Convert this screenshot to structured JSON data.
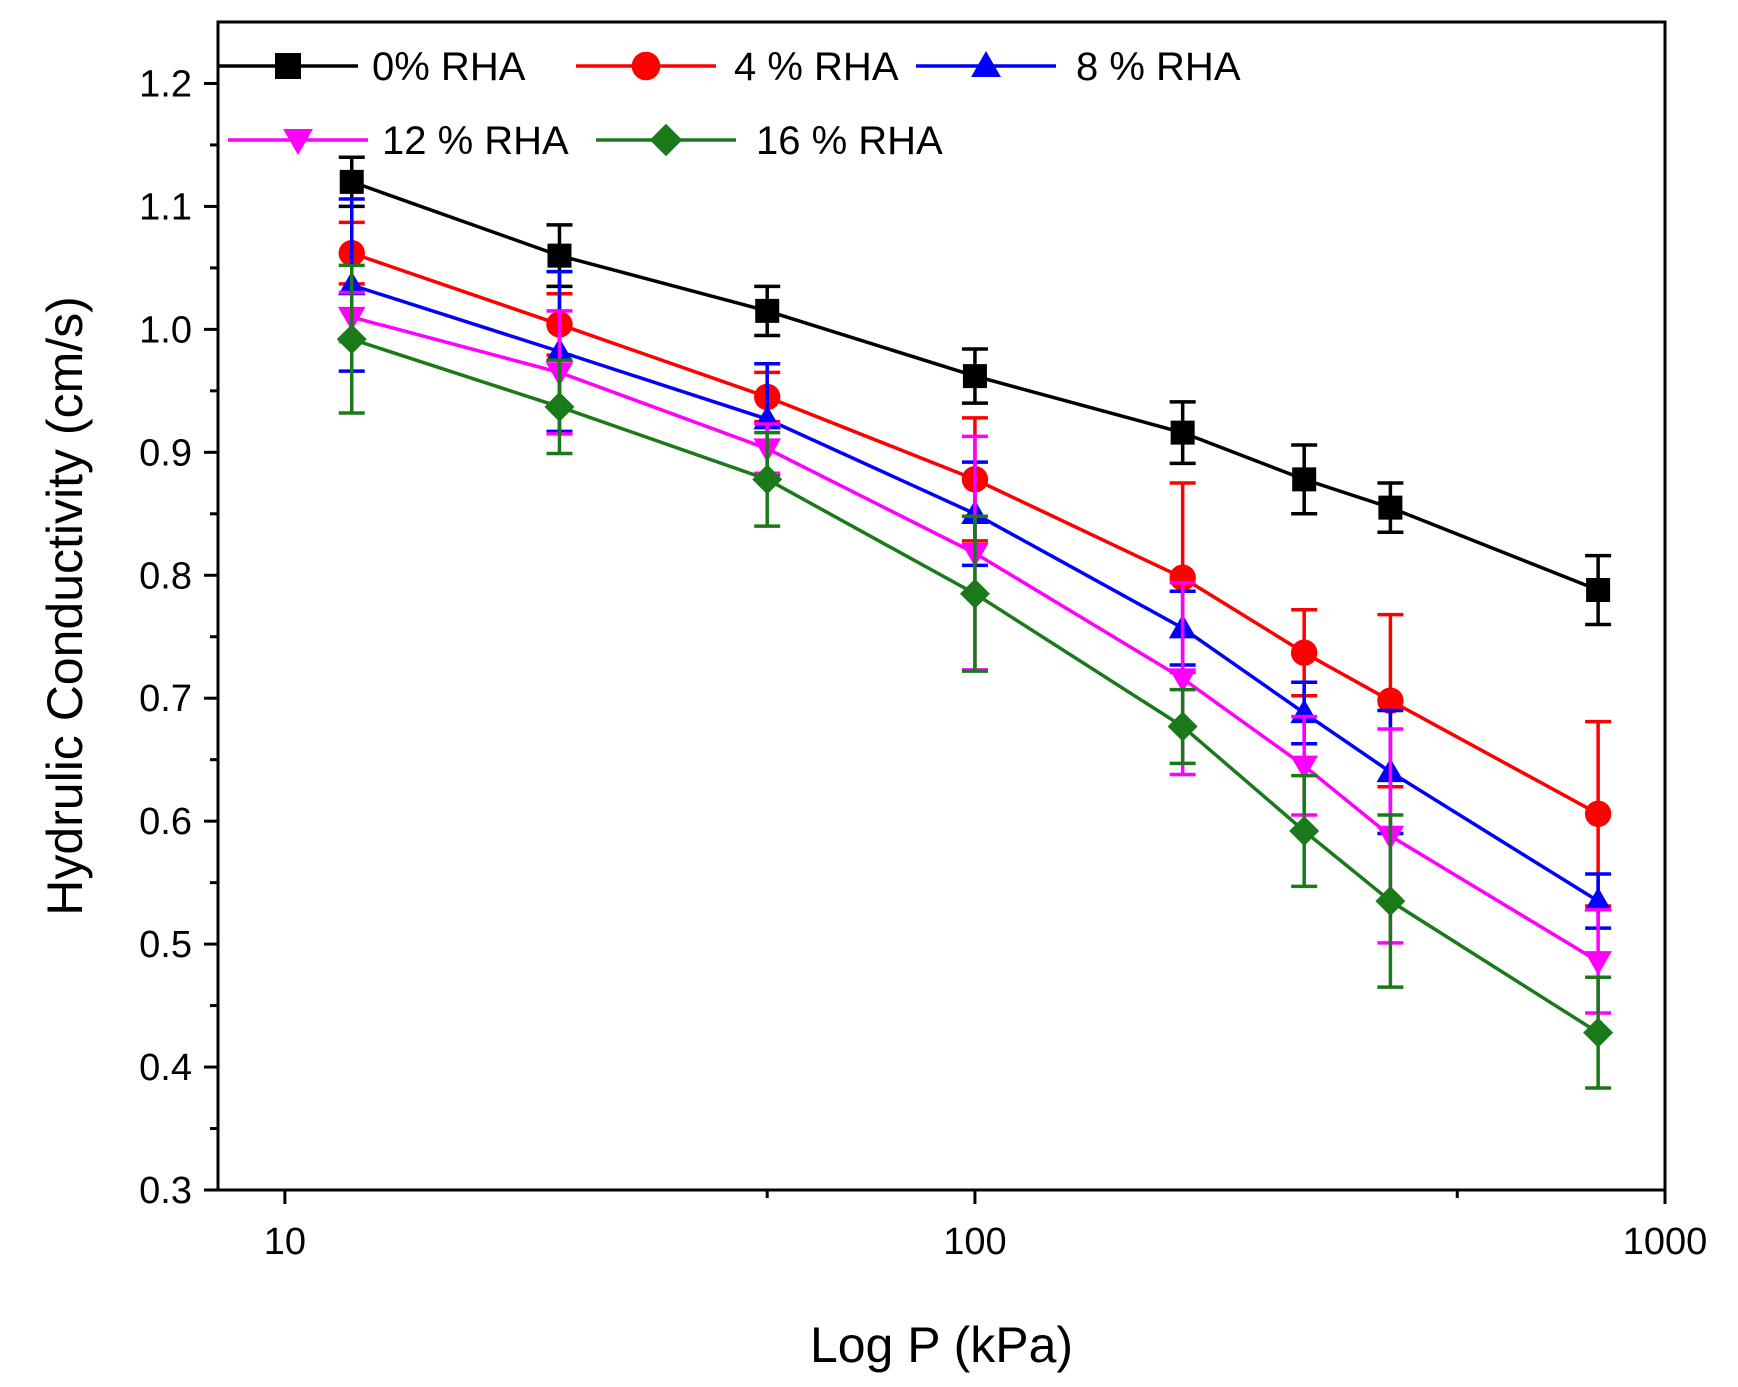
{
  "chart_data": {
    "type": "line",
    "xlabel": "Log P (kPa)",
    "ylabel": "Hydrulic Conductivity (cm/s)",
    "xscale": "log",
    "xlim": [
      8,
      1000
    ],
    "ylim": [
      0.3,
      1.25
    ],
    "x_ticks": [
      10,
      100,
      1000
    ],
    "x_tick_labels": [
      "10",
      "100",
      "1000"
    ],
    "y_ticks": [
      0.3,
      0.4,
      0.5,
      0.6,
      0.7,
      0.8,
      0.9,
      1.0,
      1.1,
      1.2
    ],
    "y_tick_labels": [
      "0.3",
      "0.4",
      "0.5",
      "0.6",
      "0.7",
      "0.8",
      "0.9",
      "1.0",
      "1.1",
      "1.2"
    ],
    "grid": false,
    "legend_position": "top-left",
    "x": [
      12.5,
      25,
      50,
      100,
      200,
      300,
      400,
      800
    ],
    "series": [
      {
        "name": "0% RHA",
        "color": "#000000",
        "marker": "square",
        "values": [
          1.12,
          1.06,
          1.015,
          0.962,
          0.916,
          0.878,
          0.855,
          0.788
        ],
        "errors": [
          0.02,
          0.025,
          0.02,
          0.022,
          0.025,
          0.028,
          0.02,
          0.028
        ]
      },
      {
        "name": "4 % RHA",
        "color": "#ff0000",
        "marker": "circle",
        "values": [
          1.062,
          1.004,
          0.945,
          0.878,
          0.798,
          0.737,
          0.698,
          0.606
        ],
        "errors": [
          0.025,
          0.025,
          0.02,
          0.05,
          0.077,
          0.035,
          0.07,
          0.075
        ]
      },
      {
        "name": "8 % RHA",
        "color": "#0000ff",
        "marker": "triangle-up",
        "values": [
          1.036,
          0.982,
          0.927,
          0.85,
          0.757,
          0.688,
          0.64,
          0.535
        ],
        "errors": [
          0.07,
          0.065,
          0.045,
          0.042,
          0.03,
          0.025,
          0.05,
          0.022
        ]
      },
      {
        "name": "12 % RHA",
        "color": "#ff00ff",
        "marker": "triangle-down",
        "values": [
          1.01,
          0.965,
          0.903,
          0.818,
          0.716,
          0.645,
          0.588,
          0.486
        ],
        "errors": [
          0.02,
          0.05,
          0.02,
          0.095,
          0.078,
          0.04,
          0.087,
          0.042
        ]
      },
      {
        "name": "16 % RHA",
        "color": "#1a7a1a",
        "marker": "diamond",
        "values": [
          0.992,
          0.937,
          0.878,
          0.785,
          0.677,
          0.592,
          0.535,
          0.428
        ],
        "errors": [
          0.06,
          0.038,
          0.038,
          0.063,
          0.03,
          0.045,
          0.07,
          0.045
        ]
      }
    ]
  }
}
